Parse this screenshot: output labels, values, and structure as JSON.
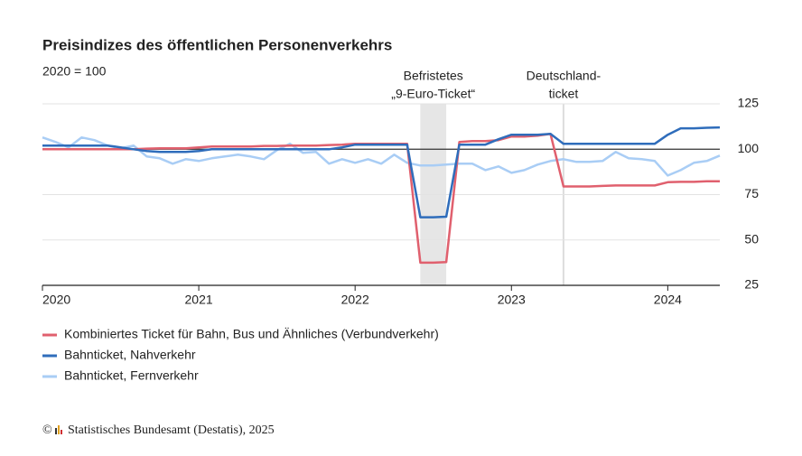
{
  "chart_data": {
    "type": "line",
    "title": "Preisindizes des öffentlichen Personenverkehrs",
    "subtitle": "2020 = 100",
    "x": [
      2020,
      2020.083,
      2020.167,
      2020.25,
      2020.333,
      2020.417,
      2020.5,
      2020.583,
      2020.667,
      2020.75,
      2020.833,
      2020.917,
      2021,
      2021.083,
      2021.167,
      2021.25,
      2021.333,
      2021.417,
      2021.5,
      2021.583,
      2021.667,
      2021.75,
      2021.833,
      2021.917,
      2022,
      2022.083,
      2022.167,
      2022.25,
      2022.333,
      2022.417,
      2022.5,
      2022.583,
      2022.667,
      2022.75,
      2022.833,
      2022.917,
      2023,
      2023.083,
      2023.167,
      2023.25,
      2023.333,
      2023.417,
      2023.5,
      2023.583,
      2023.667,
      2023.75,
      2023.833,
      2023.917,
      2024,
      2024.083,
      2024.167,
      2024.25,
      2024.333
    ],
    "series": [
      {
        "name": "Kombiniertes Ticket für Bahn, Bus und Ähnliches (Verbundverkehr)",
        "color": "#e0606e",
        "values": [
          100,
          100,
          100,
          100,
          100,
          100,
          100,
          100,
          100.3,
          100.5,
          100.5,
          100.5,
          101,
          101.5,
          101.5,
          101.5,
          101.5,
          101.8,
          101.8,
          102,
          102,
          102,
          102.3,
          102.5,
          103,
          103,
          103,
          103,
          103,
          37.5,
          37.5,
          37.8,
          104,
          104.5,
          104.5,
          105,
          107,
          107,
          107.5,
          108.5,
          79.5,
          79.5,
          79.5,
          79.8,
          80,
          80,
          80,
          80,
          81.8,
          82,
          82,
          82.3,
          82.3
        ]
      },
      {
        "name": "Bahnticket, Nahverkehr",
        "color": "#2f6dbb",
        "values": [
          102,
          102,
          102,
          102,
          102,
          102,
          101,
          100,
          99,
          98.5,
          98.5,
          98.5,
          99,
          100,
          100,
          100,
          100,
          100,
          100,
          100,
          100,
          100,
          100,
          101,
          102.5,
          102.5,
          102.5,
          102.5,
          102.5,
          62.5,
          62.5,
          62.8,
          102.5,
          102.5,
          102.5,
          105.5,
          108,
          108,
          108,
          108.5,
          103,
          103,
          103,
          103,
          103,
          103,
          103,
          103,
          108,
          111.5,
          111.5,
          111.8,
          112
        ]
      },
      {
        "name": "Bahnticket, Fernverkehr",
        "color": "#a9cdf5",
        "values": [
          106.5,
          104,
          101,
          106.5,
          105,
          102,
          100.5,
          102,
          96,
          95,
          92,
          94.5,
          93.5,
          95,
          96,
          97,
          96,
          94.5,
          99.5,
          103,
          98,
          98.5,
          92,
          94.5,
          92.5,
          94.5,
          92,
          97,
          92.5,
          91,
          91,
          91.5,
          92,
          92,
          88.5,
          90.5,
          87,
          88.5,
          91.5,
          93.5,
          94.5,
          93,
          93,
          93.5,
          98.5,
          95,
          94.5,
          93.5,
          85.5,
          88.5,
          92.5,
          93.5,
          96.5
        ]
      }
    ],
    "xlim": [
      2020,
      2024.333
    ],
    "xticks": [
      2020,
      2021,
      2022,
      2023,
      2024
    ],
    "ylim": [
      25,
      125
    ],
    "yticks": [
      25,
      50,
      75,
      100,
      125
    ],
    "reference_line": 100,
    "grid": true,
    "annotations": [
      {
        "text": [
          "Befristetes",
          "„9-Euro-Ticket“"
        ],
        "range": [
          2022.417,
          2022.583
        ]
      },
      {
        "text": [
          "Deutschland-",
          "ticket"
        ],
        "x": 2023.333
      }
    ],
    "source": "© Statistisches Bundesamt (Destatis), 2025"
  }
}
